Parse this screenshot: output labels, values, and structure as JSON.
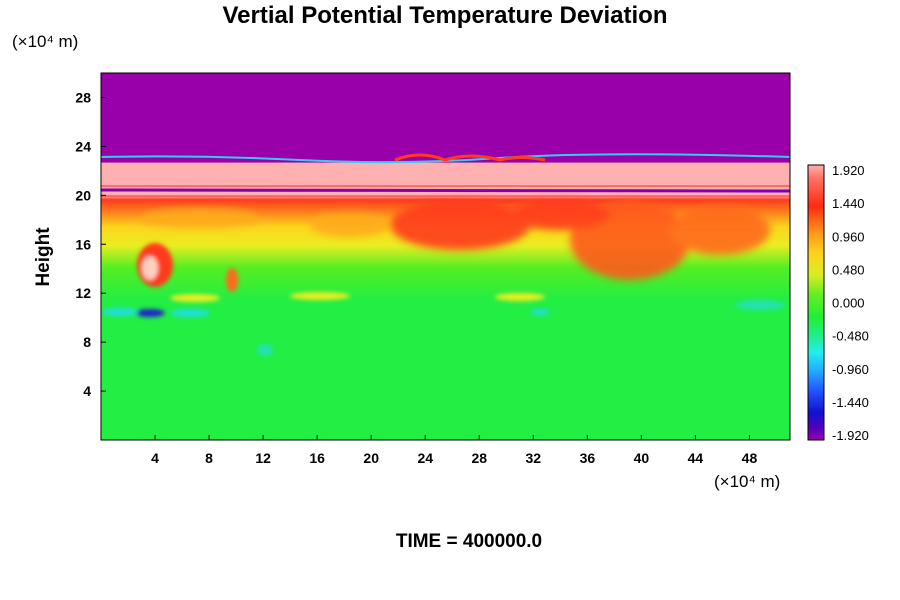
{
  "chart_data": {
    "type": "heatmap",
    "title": "Vertial Potential Temperature Deviation",
    "ylabel": "Height",
    "xlabel": "",
    "x_unit": "(×10⁴ m)",
    "y_unit": "(×10⁴ m)",
    "x_ticks": [
      "4",
      "8",
      "12",
      "16",
      "20",
      "24",
      "28",
      "32",
      "36",
      "40",
      "44",
      "48"
    ],
    "y_ticks": [
      "4",
      "8",
      "12",
      "16",
      "20",
      "24",
      "28"
    ],
    "xlim": [
      0,
      51
    ],
    "ylim": [
      0,
      30
    ],
    "colorbar": {
      "labels": [
        "1.920",
        "1.440",
        "0.960",
        "0.480",
        "0.000",
        "-0.480",
        "-0.960",
        "-1.440",
        "-1.920"
      ],
      "range": [
        -1.92,
        1.92
      ]
    },
    "field_regions": [
      {
        "y_range": [
          23,
          30
        ],
        "value": -2.0
      },
      {
        "y_range": [
          19.5,
          23
        ],
        "value": 2.0
      },
      {
        "y_range": [
          16,
          19.5
        ],
        "value": 1.2
      },
      {
        "y_range": [
          12,
          16
        ],
        "value": 0.3
      },
      {
        "y_range": [
          10,
          12
        ],
        "value": -0.1
      },
      {
        "y_range": [
          0,
          10
        ],
        "value": 0.05
      }
    ],
    "grid": false,
    "legend": "colorbar-right"
  },
  "footer": {
    "time_text": "TIME = 400000.0"
  },
  "colors": {
    "field_top": "#9900aa",
    "field_high": "#ffb0b0",
    "field_red": "#ff3a1e",
    "field_yellow": "#e8ee22",
    "field_green": "#22ee44",
    "field_cyan": "#22dddd",
    "field_blue": "#2222cc"
  }
}
